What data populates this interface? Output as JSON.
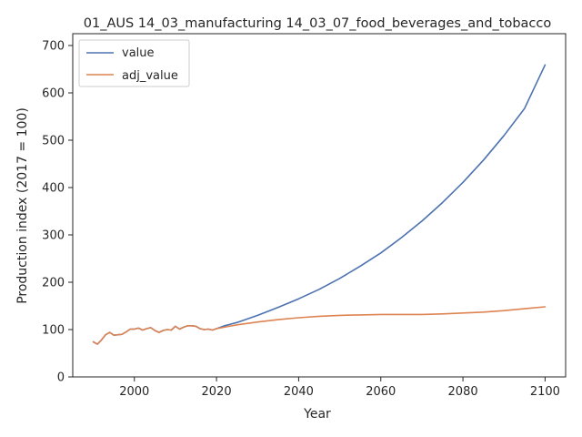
{
  "chart_data": {
    "type": "line",
    "title": "01_AUS 14_03_manufacturing 14_03_07_food_beverages_and_tobacco",
    "xlabel": "Year",
    "ylabel": "Production index (2017 = 100)",
    "xlim": [
      1985,
      2105
    ],
    "ylim": [
      0,
      725
    ],
    "xticks": [
      2000,
      2020,
      2040,
      2060,
      2080,
      2100
    ],
    "yticks": [
      0,
      100,
      200,
      300,
      400,
      500,
      600,
      700
    ],
    "legend_position": "top-left",
    "grid": false,
    "series": [
      {
        "name": "value",
        "color": "#4c72b0",
        "points": [
          [
            1990,
            74
          ],
          [
            1991,
            69
          ],
          [
            1992,
            78
          ],
          [
            1993,
            89
          ],
          [
            1994,
            94
          ],
          [
            1995,
            88
          ],
          [
            1996,
            89
          ],
          [
            1997,
            90
          ],
          [
            1998,
            95
          ],
          [
            1999,
            101
          ],
          [
            2000,
            101
          ],
          [
            2001,
            103
          ],
          [
            2002,
            99
          ],
          [
            2003,
            102
          ],
          [
            2004,
            104
          ],
          [
            2005,
            98
          ],
          [
            2006,
            94
          ],
          [
            2007,
            98
          ],
          [
            2008,
            100
          ],
          [
            2009,
            99
          ],
          [
            2010,
            107
          ],
          [
            2011,
            101
          ],
          [
            2012,
            105
          ],
          [
            2013,
            108
          ],
          [
            2014,
            108
          ],
          [
            2015,
            107
          ],
          [
            2016,
            102
          ],
          [
            2017,
            100
          ],
          [
            2018,
            101
          ],
          [
            2019,
            99
          ],
          [
            2020,
            102
          ],
          [
            2022,
            108
          ],
          [
            2025,
            115
          ],
          [
            2030,
            130
          ],
          [
            2035,
            147
          ],
          [
            2040,
            165
          ],
          [
            2045,
            185
          ],
          [
            2050,
            208
          ],
          [
            2055,
            234
          ],
          [
            2060,
            262
          ],
          [
            2065,
            294
          ],
          [
            2070,
            329
          ],
          [
            2075,
            368
          ],
          [
            2080,
            411
          ],
          [
            2085,
            458
          ],
          [
            2090,
            510
          ],
          [
            2095,
            567
          ],
          [
            2100,
            659
          ]
        ]
      },
      {
        "name": "adj_value",
        "color": "#dd8452",
        "points": [
          [
            1990,
            74
          ],
          [
            1991,
            69
          ],
          [
            1992,
            78
          ],
          [
            1993,
            89
          ],
          [
            1994,
            94
          ],
          [
            1995,
            88
          ],
          [
            1996,
            89
          ],
          [
            1997,
            90
          ],
          [
            1998,
            95
          ],
          [
            1999,
            101
          ],
          [
            2000,
            101
          ],
          [
            2001,
            103
          ],
          [
            2002,
            99
          ],
          [
            2003,
            102
          ],
          [
            2004,
            104
          ],
          [
            2005,
            98
          ],
          [
            2006,
            94
          ],
          [
            2007,
            98
          ],
          [
            2008,
            100
          ],
          [
            2009,
            99
          ],
          [
            2010,
            107
          ],
          [
            2011,
            101
          ],
          [
            2012,
            105
          ],
          [
            2013,
            108
          ],
          [
            2014,
            108
          ],
          [
            2015,
            107
          ],
          [
            2016,
            102
          ],
          [
            2017,
            100
          ],
          [
            2018,
            101
          ],
          [
            2019,
            99
          ],
          [
            2020,
            102
          ],
          [
            2025,
            110
          ],
          [
            2030,
            116
          ],
          [
            2035,
            121
          ],
          [
            2040,
            125
          ],
          [
            2045,
            128
          ],
          [
            2050,
            130
          ],
          [
            2055,
            131
          ],
          [
            2060,
            132
          ],
          [
            2065,
            132
          ],
          [
            2070,
            132
          ],
          [
            2075,
            133
          ],
          [
            2080,
            135
          ],
          [
            2085,
            137
          ],
          [
            2090,
            140
          ],
          [
            2095,
            144
          ],
          [
            2100,
            148
          ]
        ]
      }
    ]
  }
}
